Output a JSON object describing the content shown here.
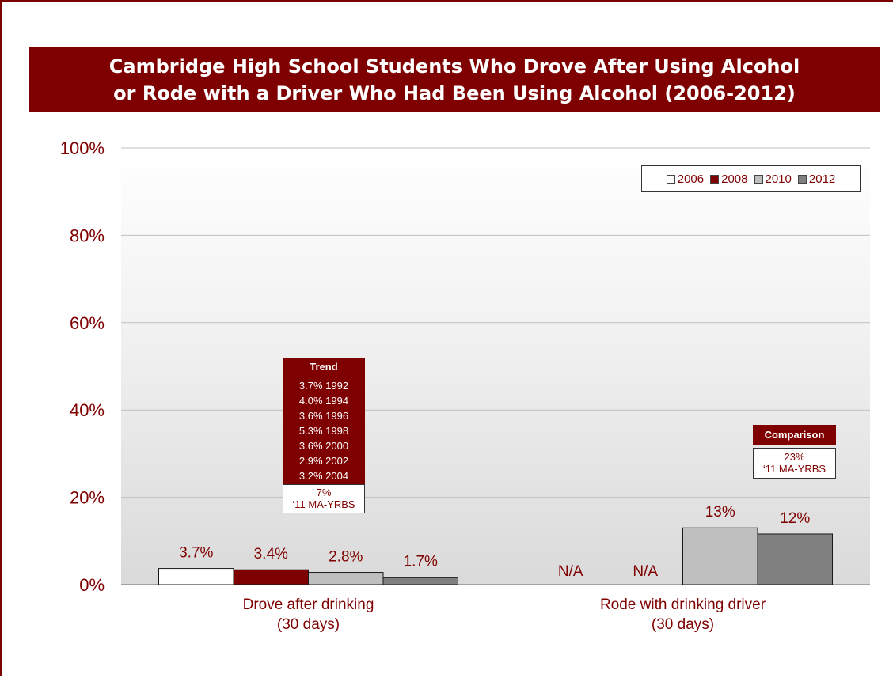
{
  "chart_data": {
    "type": "bar",
    "title": "Cambridge High School Students Who Drove After Using Alcohol or Rode with a Driver Who Had Been Using Alcohol (2006-2012)",
    "title_lines": [
      "Cambridge High School Students Who Drove After Using Alcohol",
      "or Rode with a Driver Who Had Been Using Alcohol (2006-2012)"
    ],
    "categories": [
      [
        "Drove after drinking",
        "(30 days)"
      ],
      [
        "Rode with drinking driver",
        "(30 days)"
      ]
    ],
    "series": [
      {
        "name": "2006",
        "color": "#ffffff",
        "values": [
          3.7,
          null
        ],
        "labels": [
          "3.7%",
          "N/A"
        ]
      },
      {
        "name": "2008",
        "color": "#7f0000",
        "values": [
          3.4,
          null
        ],
        "labels": [
          "3.4%",
          "N/A"
        ]
      },
      {
        "name": "2010",
        "color": "#bfbfbf",
        "values": [
          2.8,
          13
        ],
        "labels": [
          "2.8%",
          "13%"
        ]
      },
      {
        "name": "2012",
        "color": "#808080",
        "values": [
          1.7,
          11.6
        ],
        "labels": [
          "1.7%",
          "12%"
        ]
      }
    ],
    "ylim": [
      0,
      100
    ],
    "yticks": [
      "0%",
      "20%",
      "40%",
      "60%",
      "80%",
      "100%"
    ],
    "ytick_values": [
      0,
      20,
      40,
      60,
      80,
      100
    ],
    "grid": true,
    "legend_position": "top-right",
    "xlabel": "",
    "ylabel": ""
  },
  "annotations": {
    "trend": {
      "title": "Trend",
      "items": [
        "3.7% 1992",
        "4.0% 1994",
        "3.6% 1996",
        "5.3% 1998",
        "3.6% 2000",
        "2.9% 2002",
        "3.2% 2004"
      ],
      "comparison_value": "7%",
      "comparison_source": "‘11 MA-YRBS"
    },
    "comparison": {
      "title": "Comparison",
      "value": "23%",
      "source": "‘11 MA-YRBS"
    }
  },
  "colors": {
    "accent": "#7f0000",
    "grid": "#bfbfbf"
  }
}
